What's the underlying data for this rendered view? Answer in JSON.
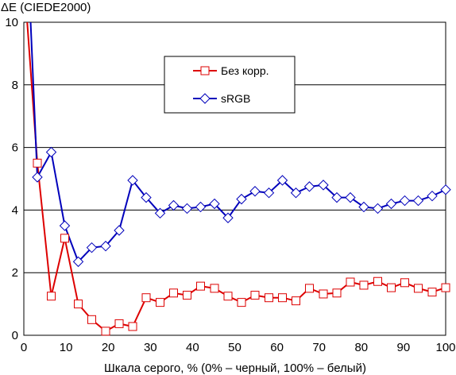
{
  "chart_data": {
    "type": "line",
    "ylabel": "ΔE (CIEDE2000)",
    "xlabel": "Шкала серого, % (0% – черный, 100% – белый)",
    "xlim": [
      0,
      100
    ],
    "ylim": [
      0,
      10
    ],
    "x_ticks": [
      0,
      10,
      20,
      30,
      40,
      50,
      60,
      70,
      80,
      90,
      100
    ],
    "y_ticks": [
      0,
      2,
      4,
      6,
      8,
      10
    ],
    "grid": "horizontal",
    "legend_placement": "top-center",
    "series": [
      {
        "name": "Без корр.",
        "color": "#dd0000",
        "marker": "square",
        "x": [
          0,
          3.2,
          6.5,
          9.7,
          12.9,
          16.1,
          19.4,
          22.6,
          25.8,
          29.0,
          32.3,
          35.5,
          38.7,
          41.9,
          45.2,
          48.4,
          51.6,
          54.8,
          58.1,
          61.3,
          64.5,
          67.7,
          71.0,
          74.2,
          77.4,
          80.6,
          83.9,
          87.1,
          90.3,
          93.5,
          96.8,
          100
        ],
        "values": [
          11.5,
          5.5,
          1.25,
          3.1,
          1.0,
          0.5,
          0.13,
          0.37,
          0.28,
          1.2,
          1.05,
          1.35,
          1.28,
          1.57,
          1.5,
          1.25,
          1.05,
          1.28,
          1.2,
          1.2,
          1.1,
          1.5,
          1.32,
          1.35,
          1.7,
          1.6,
          1.72,
          1.52,
          1.68,
          1.5,
          1.38,
          1.52
        ]
      },
      {
        "name": "sRGB",
        "color": "#0000bb",
        "marker": "diamond",
        "x": [
          0,
          3.2,
          6.5,
          9.7,
          12.9,
          16.1,
          19.4,
          22.6,
          25.8,
          29.0,
          32.3,
          35.5,
          38.7,
          41.9,
          45.2,
          48.4,
          51.6,
          54.8,
          58.1,
          61.3,
          64.5,
          67.7,
          71.0,
          74.2,
          77.4,
          80.6,
          83.9,
          87.1,
          90.3,
          93.5,
          96.8,
          100
        ],
        "values": [
          15.0,
          5.05,
          5.85,
          3.5,
          2.35,
          2.8,
          2.85,
          3.35,
          4.95,
          4.4,
          3.9,
          4.15,
          4.05,
          4.1,
          4.2,
          3.75,
          4.35,
          4.6,
          4.55,
          4.95,
          4.55,
          4.75,
          4.8,
          4.4,
          4.4,
          4.1,
          4.05,
          4.2,
          4.3,
          4.3,
          4.45,
          4.65
        ]
      }
    ]
  }
}
